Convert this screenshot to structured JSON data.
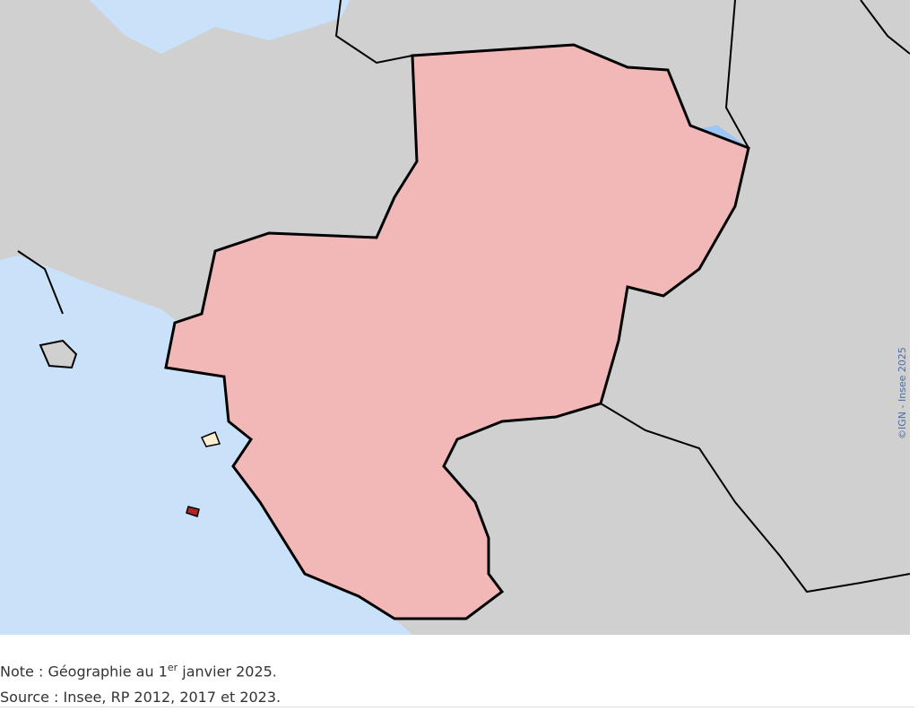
{
  "note": {
    "prefix": "Note : Géographie au 1",
    "sup": "er",
    "suffix": " janvier 2025."
  },
  "source": "Source : Insee, RP 2012, 2017 et 2023.",
  "copyright": "©IGN - Insee 2025"
}
